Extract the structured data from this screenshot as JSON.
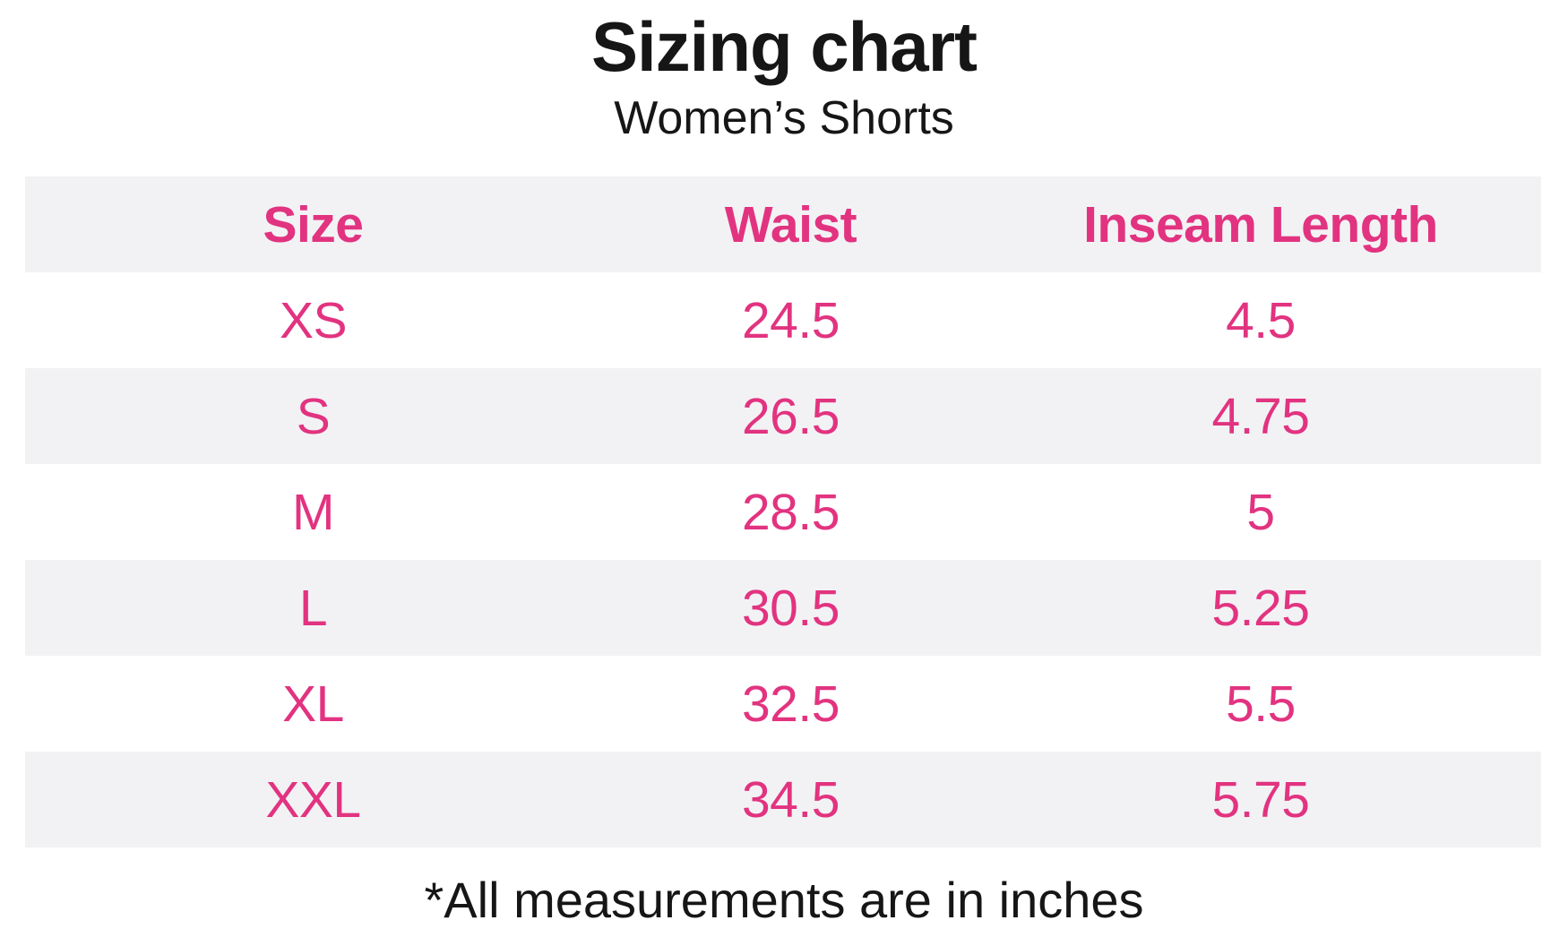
{
  "title": "Sizing chart",
  "subtitle": "Women’s Shorts",
  "footnote": "*All measurements are in inches",
  "colors": {
    "accent_pink": "#E23380",
    "row_alt_bg": "#F2F2F4",
    "text_black": "#161616"
  },
  "table": {
    "columns": [
      "Size",
      "Waist",
      "Inseam Length"
    ],
    "rows": [
      [
        "XS",
        "24.5",
        "4.5"
      ],
      [
        "S",
        "26.5",
        "4.75"
      ],
      [
        "M",
        "28.5",
        "5"
      ],
      [
        "L",
        "30.5",
        "5.25"
      ],
      [
        "XL",
        "32.5",
        "5.5"
      ],
      [
        "XXL",
        "34.5",
        "5.75"
      ]
    ]
  },
  "chart_data": {
    "type": "table",
    "title": "Sizing chart",
    "subtitle": "Women's Shorts",
    "columns": [
      "Size",
      "Waist",
      "Inseam Length"
    ],
    "units": "inches",
    "rows": [
      {
        "size": "XS",
        "waist": 24.5,
        "inseam_length": 4.5
      },
      {
        "size": "S",
        "waist": 26.5,
        "inseam_length": 4.75
      },
      {
        "size": "M",
        "waist": 28.5,
        "inseam_length": 5
      },
      {
        "size": "L",
        "waist": 30.5,
        "inseam_length": 5.25
      },
      {
        "size": "XL",
        "waist": 32.5,
        "inseam_length": 5.5
      },
      {
        "size": "XXL",
        "waist": 34.5,
        "inseam_length": 5.75
      }
    ],
    "note": "*All measurements are in inches"
  }
}
